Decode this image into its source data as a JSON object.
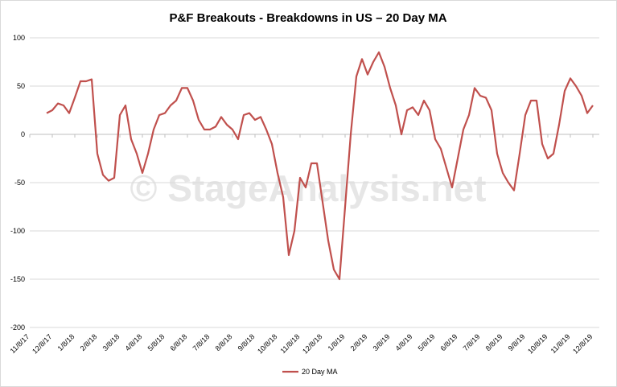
{
  "chart_data": {
    "type": "line",
    "title": "P&F Breakouts - Breakdowns in US – 20 Day MA",
    "watermark": "© StageAnalysis.net",
    "categories": [
      "11/8/17",
      null,
      null,
      null,
      "12/8/17",
      null,
      null,
      null,
      "1/8/18",
      null,
      null,
      null,
      "2/8/18",
      null,
      null,
      null,
      "3/8/18",
      null,
      null,
      null,
      "4/8/18",
      null,
      null,
      null,
      "5/8/18",
      null,
      null,
      null,
      "6/8/18",
      null,
      null,
      null,
      "7/8/18",
      null,
      null,
      null,
      "8/8/18",
      null,
      null,
      null,
      "9/8/18",
      null,
      null,
      null,
      "10/8/18",
      null,
      null,
      null,
      "11/8/18",
      null,
      null,
      null,
      "12/8/18",
      null,
      null,
      null,
      "1/8/19",
      null,
      null,
      null,
      "2/8/19",
      null,
      null,
      null,
      "3/8/19",
      null,
      null,
      null,
      "4/8/19",
      null,
      null,
      null,
      "5/8/19",
      null,
      null,
      null,
      "6/8/19",
      null,
      null,
      null,
      "7/8/19",
      null,
      null,
      null,
      "8/8/19",
      null,
      null,
      null,
      "9/8/19",
      null,
      null,
      null,
      "10/8/19",
      null,
      null,
      null,
      "11/8/19",
      null,
      null,
      null,
      "12/8/19"
    ],
    "series": [
      {
        "name": "20 Day MA",
        "color": "#c0504d",
        "values": [
          null,
          null,
          null,
          22,
          25,
          32,
          30,
          22,
          38,
          55,
          55,
          57,
          -20,
          -42,
          -48,
          -45,
          20,
          30,
          -5,
          -20,
          -40,
          -20,
          5,
          20,
          22,
          30,
          35,
          48,
          48,
          35,
          15,
          5,
          5,
          8,
          18,
          10,
          5,
          -5,
          20,
          22,
          15,
          18,
          5,
          -10,
          -40,
          -65,
          -125,
          -100,
          -45,
          -55,
          -30,
          -30,
          -70,
          -110,
          -140,
          -150,
          -75,
          0,
          60,
          78,
          62,
          75,
          85,
          70,
          48,
          30,
          0,
          25,
          28,
          20,
          35,
          25,
          -5,
          -15,
          -35,
          -55,
          -25,
          5,
          20,
          48,
          40,
          38,
          25,
          -20,
          -40,
          -50,
          -58,
          -20,
          20,
          35,
          35,
          -10,
          -25,
          -20,
          10,
          45,
          58,
          50,
          40,
          22,
          30
        ]
      }
    ],
    "ylim": [
      -200,
      100
    ],
    "yticks": [
      -200,
      -150,
      -100,
      -50,
      0,
      50,
      100
    ],
    "grid": true,
    "legend": "bottom"
  }
}
